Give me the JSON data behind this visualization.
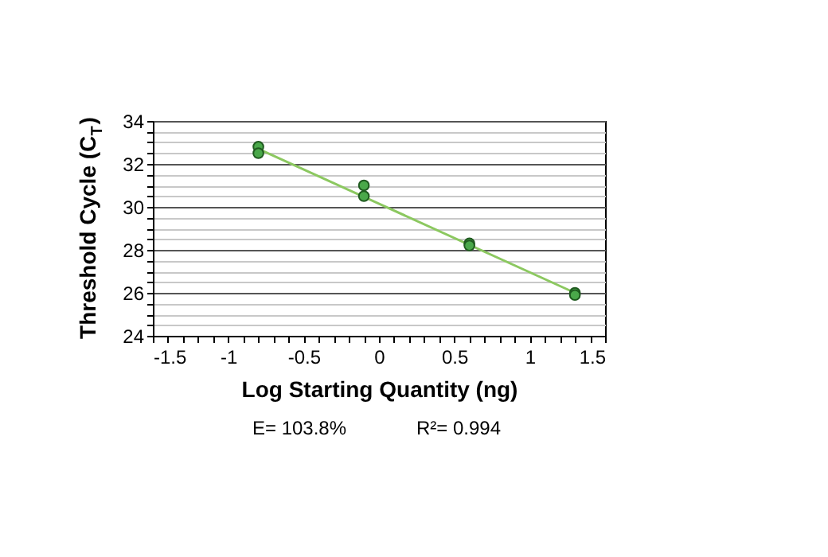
{
  "chart_data": {
    "type": "scatter",
    "xlabel": "Log Starting Quantity (ng)",
    "ylabel": "Threshold Cycle (C$_{T}$)",
    "annotations": [
      "E= 103.8%",
      "R²= 0.994"
    ],
    "series": [
      {
        "color": "#4aa84a",
        "marker": "circle",
        "x": [
          -0.8,
          -0.8,
          -0.1,
          -0.1,
          0.6,
          0.6,
          1.3,
          1.3
        ],
        "values": [
          32.8,
          32.5,
          31.0,
          30.5,
          28.3,
          28.2,
          26.0,
          25.9
        ]
      },
      {
        "type": "line",
        "color": "#8cc860",
        "line_style": "solid",
        "x": [
          -0.8,
          1.3
        ],
        "values": [
          32.7,
          26.0
        ]
      }
    ],
    "xlim": [
      -1.5,
      1.5
    ],
    "ylim": [
      24,
      34
    ],
    "xticks": [
      -1.5,
      {
        "value": -1.4,
        "label": null
      },
      {
        "value": -1.3,
        "label": null
      },
      {
        "value": -1.2,
        "label": null
      },
      {
        "value": -1.1,
        "label": null
      },
      -1,
      {
        "value": -0.9,
        "label": null
      },
      {
        "value": -0.8,
        "label": null
      },
      {
        "value": -0.7,
        "label": null
      },
      {
        "value": -0.6,
        "label": null
      },
      -0.5,
      {
        "value": -0.4,
        "label": null
      },
      {
        "value": -0.3,
        "label": null
      },
      {
        "value": -0.2,
        "label": null
      },
      {
        "value": -0.1,
        "label": null
      },
      0,
      {
        "value": 0.1,
        "label": null
      },
      {
        "value": 0.2,
        "label": null
      },
      {
        "value": 0.3,
        "label": null
      },
      {
        "value": 0.4,
        "label": null
      },
      0.5,
      {
        "value": 0.6,
        "label": null
      },
      {
        "value": 0.7,
        "label": null
      },
      {
        "value": 0.8,
        "label": null
      },
      {
        "value": 0.9,
        "label": null
      },
      1,
      {
        "value": 1.1,
        "label": null
      },
      {
        "value": 1.2,
        "label": null
      },
      {
        "value": 1.3,
        "label": null
      },
      {
        "value": 1.4,
        "label": null
      },
      1.5
    ],
    "yticks": [
      24,
      {
        "value": 24.5,
        "label": null
      },
      {
        "value": 25,
        "label": null
      },
      {
        "value": 25.5,
        "label": null
      },
      26,
      {
        "value": 26.5,
        "label": null
      },
      {
        "value": 27,
        "label": null
      },
      {
        "value": 27.5,
        "label": null
      },
      28,
      {
        "value": 28.5,
        "label": null
      },
      {
        "value": 29,
        "label": null
      },
      {
        "value": 29.5,
        "label": null
      },
      30,
      {
        "value": 30.5,
        "label": null
      },
      {
        "value": 31,
        "label": null
      },
      {
        "value": 31.5,
        "label": null
      },
      32,
      {
        "value": 32.5,
        "label": null
      },
      {
        "value": 33,
        "label": null
      },
      {
        "value": 33.5,
        "label": null
      },
      34
    ],
    "grid": "y"
  }
}
